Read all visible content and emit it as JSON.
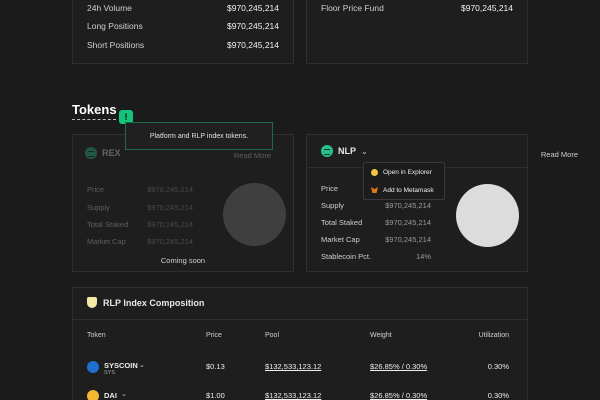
{
  "stats_left": [
    {
      "label": "24h Volume",
      "value": "$970,245,214"
    },
    {
      "label": "Long Positions",
      "value": "$970,245,214"
    },
    {
      "label": "Short Positions",
      "value": "$970,245,214"
    }
  ],
  "stats_right": [
    {
      "label": "Floor Price Fund",
      "value": "$970,245,214"
    }
  ],
  "tokens": {
    "title": "Tokens",
    "alert_symbol": "!",
    "tooltip": "Platform and RLP index tokens."
  },
  "rex_card": {
    "name": "REX",
    "read_more": "Read More",
    "rows": [
      {
        "label": "Price",
        "value": "$970,245,214"
      },
      {
        "label": "Supply",
        "value": "$970,245,214"
      },
      {
        "label": "Total Staked",
        "value": "$970,245,214"
      },
      {
        "label": "Market Cap",
        "value": "$970,245,214"
      }
    ],
    "footer": "Coming soon"
  },
  "nlp_card": {
    "name": "NLP",
    "read_more": "Read More",
    "rows": [
      {
        "label": "Price",
        "value": ""
      },
      {
        "label": "Supply",
        "value": "$970,245,214"
      },
      {
        "label": "Total Staked",
        "value": "$970,245,214"
      },
      {
        "label": "Market Cap",
        "value": "$970,245,214"
      },
      {
        "label": "Stablecoin Pct.",
        "value": "14%"
      }
    ],
    "dropdown": [
      "Open in Explorer",
      "Add to Metamask"
    ]
  },
  "composition": {
    "title": "RLP Index Composition",
    "headers": [
      "Token",
      "Price",
      "Pool",
      "Weight",
      "Utilization"
    ],
    "rows": [
      {
        "name": "SYSCOIN",
        "symbol": "SYS",
        "price": "$0.13",
        "pool": "$132,533,123.12",
        "weight": "$26.85% / 0.30%",
        "utilization": "0.30%"
      },
      {
        "name": "DAI",
        "symbol": "",
        "price": "$1.00",
        "pool": "$132,533,123.12",
        "weight": "$26.85% / 0.30%",
        "utilization": "0.30%"
      }
    ]
  },
  "colors": {
    "accent": "#13c47b",
    "background": "#1b1b1b"
  }
}
